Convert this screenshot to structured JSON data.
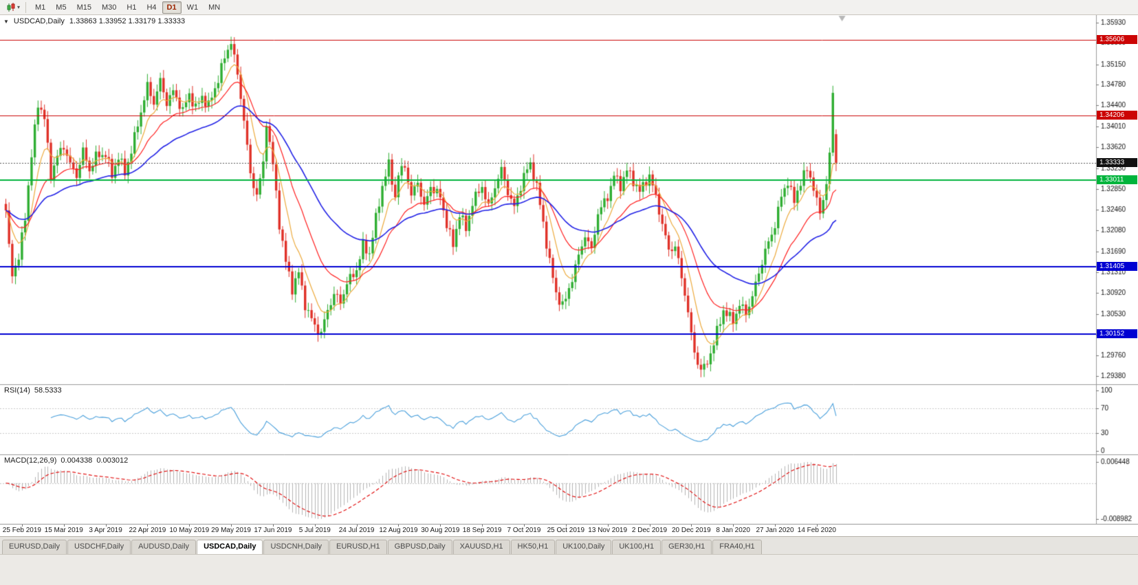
{
  "toolbar": {
    "timeframes": [
      "M1",
      "M5",
      "M15",
      "M30",
      "H1",
      "H4",
      "D1",
      "W1",
      "MN"
    ],
    "active_timeframe": "D1"
  },
  "chart_header": {
    "symbol": "USDCAD,Daily",
    "ohlc": "1.33863 1.33952 1.33179 1.33333"
  },
  "chart_data": {
    "type": "candlestick",
    "title": "USDCAD,Daily",
    "last_bar": {
      "open": 1.33863,
      "high": 1.33952,
      "low": 1.33179,
      "close": 1.33333
    },
    "bar_count": 259,
    "noise_amp": 0.0011,
    "y_range": [
      1.2924,
      1.3607
    ],
    "y_ticks": [
      "1.35930",
      "1.35560",
      "1.35150",
      "1.34780",
      "1.34400",
      "1.34010",
      "1.33620",
      "1.33230",
      "1.32850",
      "1.32460",
      "1.32080",
      "1.31690",
      "1.31310",
      "1.30920",
      "1.30530",
      "1.30140",
      "1.29760",
      "1.29380"
    ],
    "x_ticks": [
      {
        "bar": 5,
        "label": "25 Feb 2019"
      },
      {
        "bar": 18,
        "label": "15 Mar 2019"
      },
      {
        "bar": 31,
        "label": "3 Apr 2019"
      },
      {
        "bar": 44,
        "label": "22 Apr 2019"
      },
      {
        "bar": 57,
        "label": "10 May 2019"
      },
      {
        "bar": 70,
        "label": "29 May 2019"
      },
      {
        "bar": 83,
        "label": "17 Jun 2019"
      },
      {
        "bar": 96,
        "label": "5 Jul 2019"
      },
      {
        "bar": 109,
        "label": "24 Jul 2019"
      },
      {
        "bar": 122,
        "label": "12 Aug 2019"
      },
      {
        "bar": 135,
        "label": "30 Aug 2019"
      },
      {
        "bar": 148,
        "label": "18 Sep 2019"
      },
      {
        "bar": 161,
        "label": "7 Oct 2019"
      },
      {
        "bar": 174,
        "label": "25 Oct 2019"
      },
      {
        "bar": 187,
        "label": "13 Nov 2019"
      },
      {
        "bar": 200,
        "label": "2 Dec 2019"
      },
      {
        "bar": 213,
        "label": "20 Dec 2019"
      },
      {
        "bar": 226,
        "label": "8 Jan 2020"
      },
      {
        "bar": 239,
        "label": "27 Jan 2020"
      },
      {
        "bar": 252,
        "label": "14 Feb 2020"
      }
    ],
    "close_waypoints": [
      [
        0,
        1.3245
      ],
      [
        1,
        1.3175
      ],
      [
        2,
        1.313
      ],
      [
        4,
        1.3155
      ],
      [
        6,
        1.3235
      ],
      [
        8,
        1.3345
      ],
      [
        10,
        1.3445
      ],
      [
        12,
        1.3415
      ],
      [
        14,
        1.331
      ],
      [
        16,
        1.3345
      ],
      [
        18,
        1.3365
      ],
      [
        20,
        1.333
      ],
      [
        22,
        1.331
      ],
      [
        24,
        1.3355
      ],
      [
        26,
        1.332
      ],
      [
        28,
        1.3345
      ],
      [
        31,
        1.335
      ],
      [
        33,
        1.331
      ],
      [
        35,
        1.3345
      ],
      [
        37,
        1.3315
      ],
      [
        39,
        1.3355
      ],
      [
        41,
        1.3405
      ],
      [
        44,
        1.3475
      ],
      [
        46,
        1.3445
      ],
      [
        48,
        1.3485
      ],
      [
        50,
        1.3445
      ],
      [
        52,
        1.3465
      ],
      [
        55,
        1.343
      ],
      [
        57,
        1.346
      ],
      [
        59,
        1.3435
      ],
      [
        61,
        1.3455
      ],
      [
        63,
        1.344
      ],
      [
        65,
        1.347
      ],
      [
        67,
        1.351
      ],
      [
        70,
        1.356
      ],
      [
        72,
        1.3495
      ],
      [
        74,
        1.3415
      ],
      [
        76,
        1.331
      ],
      [
        78,
        1.3275
      ],
      [
        80,
        1.333
      ],
      [
        81,
        1.341
      ],
      [
        83,
        1.333
      ],
      [
        85,
        1.322
      ],
      [
        87,
        1.315
      ],
      [
        89,
        1.31
      ],
      [
        91,
        1.313
      ],
      [
        93,
        1.307
      ],
      [
        96,
        1.303
      ],
      [
        98,
        1.3018
      ],
      [
        100,
        1.306
      ],
      [
        102,
        1.309
      ],
      [
        104,
        1.3075
      ],
      [
        106,
        1.311
      ],
      [
        109,
        1.3135
      ],
      [
        111,
        1.318
      ],
      [
        113,
        1.3165
      ],
      [
        115,
        1.323
      ],
      [
        117,
        1.329
      ],
      [
        119,
        1.333
      ],
      [
        121,
        1.327
      ],
      [
        122,
        1.331
      ],
      [
        124,
        1.333
      ],
      [
        126,
        1.327
      ],
      [
        128,
        1.33
      ],
      [
        130,
        1.325
      ],
      [
        132,
        1.329
      ],
      [
        135,
        1.327
      ],
      [
        137,
        1.322
      ],
      [
        139,
        1.318
      ],
      [
        141,
        1.324
      ],
      [
        143,
        1.321
      ],
      [
        145,
        1.326
      ],
      [
        148,
        1.329
      ],
      [
        150,
        1.325
      ],
      [
        152,
        1.329
      ],
      [
        154,
        1.332
      ],
      [
        156,
        1.328
      ],
      [
        158,
        1.325
      ],
      [
        161,
        1.331
      ],
      [
        163,
        1.333
      ],
      [
        165,
        1.329
      ],
      [
        167,
        1.322
      ],
      [
        169,
        1.315
      ],
      [
        171,
        1.309
      ],
      [
        173,
        1.307
      ],
      [
        174,
        1.308
      ],
      [
        176,
        1.312
      ],
      [
        178,
        1.316
      ],
      [
        180,
        1.32
      ],
      [
        182,
        1.317
      ],
      [
        184,
        1.324
      ],
      [
        187,
        1.327
      ],
      [
        189,
        1.331
      ],
      [
        191,
        1.329
      ],
      [
        193,
        1.332
      ],
      [
        195,
        1.33
      ],
      [
        197,
        1.328
      ],
      [
        200,
        1.331
      ],
      [
        202,
        1.327
      ],
      [
        204,
        1.322
      ],
      [
        206,
        1.317
      ],
      [
        208,
        1.318
      ],
      [
        210,
        1.312
      ],
      [
        212,
        1.306
      ],
      [
        213,
        1.301
      ],
      [
        215,
        1.296
      ],
      [
        217,
        1.295
      ],
      [
        219,
        1.298
      ],
      [
        221,
        1.302
      ],
      [
        223,
        1.306
      ],
      [
        226,
        1.304
      ],
      [
        228,
        1.307
      ],
      [
        230,
        1.3055
      ],
      [
        232,
        1.3085
      ],
      [
        234,
        1.313
      ],
      [
        236,
        1.317
      ],
      [
        238,
        1.32
      ],
      [
        239,
        1.322
      ],
      [
        241,
        1.327
      ],
      [
        243,
        1.33
      ],
      [
        245,
        1.326
      ],
      [
        247,
        1.33
      ],
      [
        249,
        1.332
      ],
      [
        251,
        1.329
      ],
      [
        252,
        1.326
      ],
      [
        253,
        1.324
      ],
      [
        254,
        1.3265
      ],
      [
        255,
        1.33
      ],
      [
        256,
        1.3345
      ],
      [
        257,
        1.3462
      ],
      [
        258,
        1.3333
      ]
    ],
    "hlines": [
      {
        "price": 1.35606,
        "label": "1.35606",
        "color": "#cc0404",
        "width": 1
      },
      {
        "price": 1.34206,
        "label": "1.34206",
        "color": "#cc0404",
        "width": 1
      },
      {
        "price": 1.33011,
        "label": "1.33011",
        "color": "#00b43c",
        "width": 2
      },
      {
        "price": 1.31405,
        "label": "1.31405",
        "color": "#0000d2",
        "width": 2
      },
      {
        "price": 1.30152,
        "label": "1.30152",
        "color": "#0000d2",
        "width": 2
      }
    ],
    "current_price": {
      "value": 1.33333,
      "label": "1.33333",
      "color": "#111111"
    },
    "moving_averages": [
      {
        "period": 8,
        "color": "#edaa3c",
        "width": 1.2
      },
      {
        "period": 20,
        "color": "#ff2020",
        "width": 1.2
      },
      {
        "period": 45,
        "color": "#2222e6",
        "width": 1.6
      }
    ],
    "colors": {
      "up": "#2fae32",
      "down": "#e03128",
      "background": "#ffffff",
      "axis_text": "#111111"
    },
    "indicators": {
      "rsi": {
        "name": "RSI(14)",
        "current": "58.5333",
        "period": 14,
        "levels": [
          70,
          30
        ],
        "scale_labels": [
          "100",
          "70",
          "30",
          "0"
        ],
        "color": "#4aa0dc"
      },
      "macd": {
        "name": "MACD(12,26,9)",
        "current_main": "0.004338",
        "current_signal": "0.003012",
        "fast": 12,
        "slow": 26,
        "signal": 9,
        "scale_top": "0.006448",
        "scale_bottom": "-0.008982",
        "histogram_color": "#b4b4b4",
        "signal_color": "#e00000"
      }
    }
  },
  "tabs": [
    {
      "label": "EURUSD,Daily",
      "active": false
    },
    {
      "label": "USDCHF,Daily",
      "active": false
    },
    {
      "label": "AUDUSD,Daily",
      "active": false
    },
    {
      "label": "USDCAD,Daily",
      "active": true
    },
    {
      "label": "USDCNH,Daily",
      "active": false
    },
    {
      "label": "EURUSD,H1",
      "active": false
    },
    {
      "label": "GBPUSD,Daily",
      "active": false
    },
    {
      "label": "XAUUSD,H1",
      "active": false
    },
    {
      "label": "HK50,H1",
      "active": false
    },
    {
      "label": "UK100,Daily",
      "active": false
    },
    {
      "label": "UK100,H1",
      "active": false
    },
    {
      "label": "GER30,H1",
      "active": false
    },
    {
      "label": "FRA40,H1",
      "active": false
    }
  ]
}
